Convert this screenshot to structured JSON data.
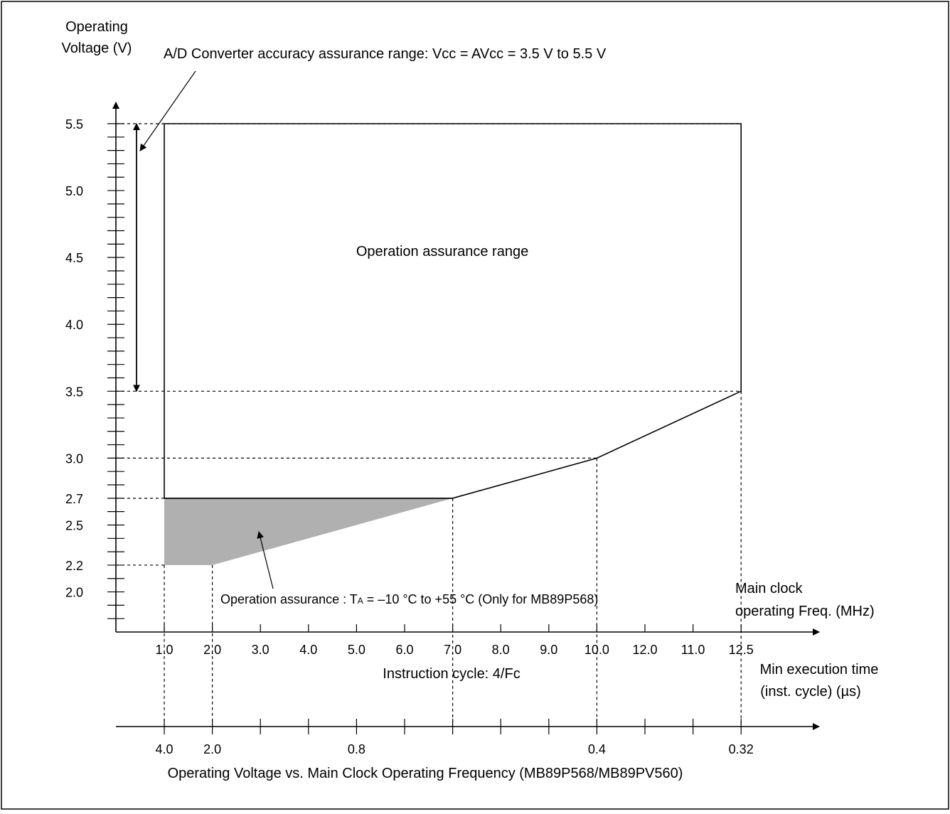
{
  "chart_data": {
    "type": "area",
    "ylabel_lines": [
      "Operating",
      "Voltage (V)"
    ],
    "adc_note": "A/D Converter accuracy assurance range: Vcc = AVcc = 3.5 V to 5.5 V",
    "region_label": "Operation assurance range",
    "shaded_note_prefix": "Operation assurance  : T",
    "shaded_note_sub": "A",
    "shaded_note_suffix": " = –10 °C to +55 °C (Only for MB89P568)",
    "x_axis_label_lines": [
      "Main clock",
      "operating Freq. (MHz)"
    ],
    "x_secondary_caption": "Instruction cycle: 4/Fc",
    "x2_axis_label_lines": [
      "Min execution time",
      "(inst. cycle) (µs)"
    ],
    "caption": "Operating Voltage vs. Main Clock Operating Frequency (MB89P568/MB89PV560)",
    "y_ticks": [
      "5.5",
      "5.0",
      "4.5",
      "4.0",
      "3.5",
      "3.0",
      "2.7",
      "2.5",
      "2.2",
      "2.0"
    ],
    "y_tick_values": [
      5.5,
      5.0,
      4.5,
      4.0,
      3.5,
      3.0,
      2.7,
      2.5,
      2.2,
      2.0
    ],
    "x_ticks": [
      "1.0",
      "2.0",
      "3.0",
      "4.0",
      "5.0",
      "6.0",
      "7.0",
      "8.0",
      "9.0",
      "10.0",
      "12.0",
      "11.0",
      "12.5"
    ],
    "x2_ticks": [
      "4.0",
      "2.0",
      "0.8",
      "0.4",
      "0.32"
    ],
    "x2_tick_positions": [
      0,
      1,
      4,
      9,
      12
    ],
    "ylim": [
      1.7,
      5.5
    ],
    "boundary": {
      "name": "Operation assurance range",
      "points": [
        [
          1.0,
          5.5
        ],
        [
          12.5,
          5.5
        ],
        [
          12.5,
          3.5
        ],
        [
          10.0,
          3.0
        ],
        [
          7.0,
          2.7
        ],
        [
          1.0,
          2.7
        ]
      ]
    },
    "shaded_region": {
      "name": "Operation assurance (TA = –10 °C to +55 °C)",
      "points": [
        [
          1.0,
          2.7
        ],
        [
          7.0,
          2.7
        ],
        [
          2.0,
          2.2
        ],
        [
          1.0,
          2.2
        ]
      ]
    },
    "adc_range": [
      3.5,
      5.5
    ],
    "colors": {
      "shaded": "#b0b0b0",
      "line": "#000000"
    }
  }
}
